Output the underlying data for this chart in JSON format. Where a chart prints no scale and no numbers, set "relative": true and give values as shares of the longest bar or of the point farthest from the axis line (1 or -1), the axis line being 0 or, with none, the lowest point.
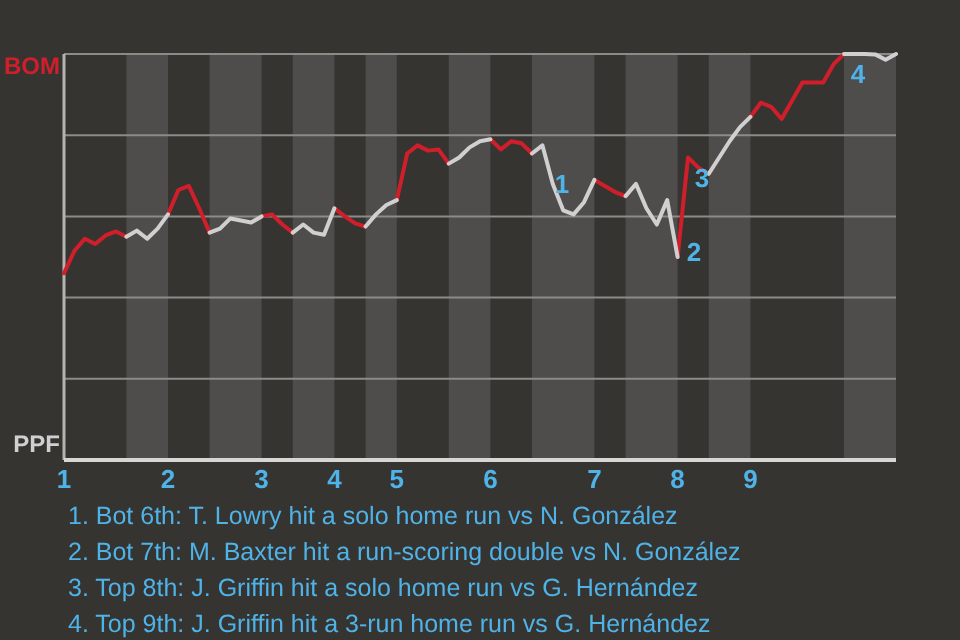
{
  "chart_data": {
    "type": "line",
    "relative": true,
    "categories": [
      "1",
      null,
      null,
      null,
      null,
      null,
      null,
      null,
      null,
      null,
      "2",
      null,
      null,
      null,
      null,
      null,
      null,
      null,
      null,
      "3",
      null,
      null,
      null,
      null,
      null,
      null,
      "4",
      null,
      null,
      null,
      null,
      null,
      "5",
      null,
      null,
      null,
      null,
      null,
      null,
      null,
      null,
      "6",
      null,
      null,
      null,
      null,
      null,
      null,
      null,
      null,
      null,
      "7",
      null,
      null,
      null,
      null,
      null,
      null,
      null,
      "8",
      null,
      null,
      null,
      null,
      null,
      null,
      "9",
      null,
      null,
      null,
      null,
      null,
      null,
      null,
      null,
      null,
      null,
      null,
      null,
      null,
      null
    ],
    "grid": "y",
    "marker": "none",
    "line_style": "solid",
    "series": [
      {
        "color": "#d01f2b",
        "values": [
          0.46,
          0.515,
          0.545,
          0.532,
          0.553,
          0.563,
          0.55,
          null,
          null,
          null,
          0.605,
          0.665,
          0.675,
          0.62,
          0.56,
          null,
          null,
          null,
          null,
          0.6,
          0.605,
          0.58,
          0.56,
          null,
          null,
          null,
          0.62,
          0.6,
          0.583,
          0.575,
          null,
          null,
          0.64,
          0.755,
          0.775,
          0.762,
          0.765,
          0.73,
          null,
          null,
          null,
          0.79,
          0.765,
          0.785,
          0.78,
          0.755,
          null,
          null,
          null,
          null,
          null,
          0.69,
          0.675,
          0.66,
          0.65,
          null,
          null,
          null,
          null,
          0.5,
          0.745,
          0.72,
          0.705,
          null,
          null,
          null,
          0.845,
          0.88,
          0.87,
          0.84,
          0.885,
          0.93,
          0.93,
          0.93,
          0.975,
          1.0,
          null,
          null,
          null,
          null,
          null
        ]
      },
      {
        "color": "#d0d0d0",
        "values": [
          null,
          null,
          null,
          null,
          null,
          null,
          0.55,
          0.565,
          0.545,
          0.57,
          0.605,
          null,
          null,
          null,
          0.56,
          0.57,
          0.595,
          0.59,
          0.585,
          0.6,
          null,
          null,
          0.56,
          0.58,
          0.56,
          0.555,
          0.62,
          null,
          null,
          0.575,
          0.605,
          0.628,
          0.64,
          null,
          null,
          null,
          null,
          0.73,
          0.745,
          0.77,
          0.785,
          0.79,
          null,
          null,
          null,
          0.755,
          0.775,
          0.68,
          0.615,
          0.605,
          0.635,
          0.69,
          null,
          null,
          0.65,
          0.68,
          0.62,
          0.58,
          0.64,
          0.5,
          null,
          null,
          0.705,
          0.745,
          0.785,
          0.82,
          0.845,
          null,
          null,
          null,
          null,
          null,
          null,
          null,
          null,
          1.0,
          1.0,
          1.0,
          0.999,
          0.986,
          1.0
        ]
      }
    ],
    "annotations": [
      "BOM",
      "PPF",
      "1",
      "2",
      {
        "text": "3",
        "y": 0.745
      },
      {
        "text": "4",
        "y": 1.0
      },
      "1. Bot 6th: T. Lowry hit a solo home run vs N. González",
      "2. Bot 7th: M. Baxter hit a run-scoring double vs N. González",
      "3. Top 8th: J. Griffin hit a solo home run vs G. Hernández",
      "4. Top 9th: J. Griffin hit a 3-run home run vs G. Hernández"
    ]
  }
}
